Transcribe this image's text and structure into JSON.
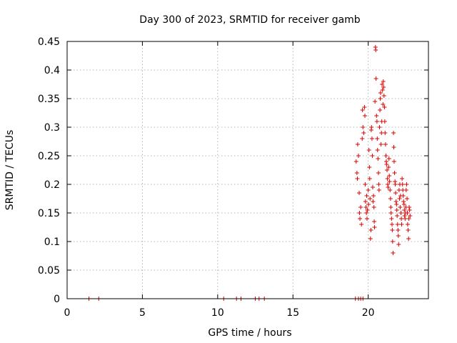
{
  "chart_data": {
    "type": "scatter",
    "title": "Day 300 of 2023, SRMTID for receiver gamb",
    "xlabel": "GPS time / hours",
    "ylabel": "SRMTID / TECUs",
    "xlim": [
      0,
      24
    ],
    "ylim": [
      0,
      0.45
    ],
    "xticks": [
      0,
      5,
      10,
      15,
      20
    ],
    "yticks": [
      0,
      0.05,
      0.1,
      0.15,
      0.2,
      0.25,
      0.3,
      0.35,
      0.4,
      0.45
    ],
    "xtick_labels": [
      "0",
      "5",
      "10",
      "15",
      "20"
    ],
    "ytick_labels": [
      "0",
      "0.05",
      "0.1",
      "0.15",
      "0.2",
      "0.25",
      "0.3",
      "0.35",
      "0.4",
      "0.45"
    ],
    "grid": true,
    "marker": "+",
    "color": "#dd0000",
    "series": [
      {
        "name": "SRMTID",
        "points": [
          [
            1.45,
            0
          ],
          [
            2.1,
            0
          ],
          [
            10.4,
            0
          ],
          [
            11.25,
            0
          ],
          [
            11.55,
            0
          ],
          [
            12.5,
            0
          ],
          [
            12.75,
            0
          ],
          [
            13.1,
            0
          ],
          [
            19.15,
            0
          ],
          [
            19.35,
            0
          ],
          [
            19.5,
            0
          ],
          [
            19.65,
            0
          ],
          [
            19.2,
            0.24
          ],
          [
            19.25,
            0.22
          ],
          [
            19.3,
            0.27
          ],
          [
            19.28,
            0.21
          ],
          [
            19.35,
            0.25
          ],
          [
            19.4,
            0.185
          ],
          [
            19.42,
            0.15
          ],
          [
            19.45,
            0.14
          ],
          [
            19.5,
            0.16
          ],
          [
            19.55,
            0.13
          ],
          [
            19.6,
            0.28
          ],
          [
            19.62,
            0.33
          ],
          [
            19.65,
            0.3
          ],
          [
            19.7,
            0.29
          ],
          [
            19.75,
            0.335
          ],
          [
            19.78,
            0.32
          ],
          [
            19.8,
            0.2
          ],
          [
            19.82,
            0.17
          ],
          [
            19.85,
            0.16
          ],
          [
            19.88,
            0.15
          ],
          [
            19.9,
            0.18
          ],
          [
            19.92,
            0.14
          ],
          [
            19.95,
            0.155
          ],
          [
            20.0,
            0.19
          ],
          [
            20.02,
            0.165
          ],
          [
            20.05,
            0.26
          ],
          [
            20.08,
            0.23
          ],
          [
            20.1,
            0.21
          ],
          [
            20.12,
            0.175
          ],
          [
            20.15,
            0.105
          ],
          [
            20.18,
            0.12
          ],
          [
            20.2,
            0.295
          ],
          [
            20.22,
            0.3
          ],
          [
            20.25,
            0.28
          ],
          [
            20.28,
            0.25
          ],
          [
            20.3,
            0.195
          ],
          [
            20.32,
            0.17
          ],
          [
            20.35,
            0.18
          ],
          [
            20.38,
            0.16
          ],
          [
            20.4,
            0.135
          ],
          [
            20.42,
            0.125
          ],
          [
            20.45,
            0.345
          ],
          [
            20.48,
            0.44
          ],
          [
            20.5,
            0.435
          ],
          [
            20.52,
            0.385
          ],
          [
            20.55,
            0.32
          ],
          [
            20.58,
            0.31
          ],
          [
            20.6,
            0.28
          ],
          [
            20.62,
            0.26
          ],
          [
            20.65,
            0.245
          ],
          [
            20.68,
            0.22
          ],
          [
            20.7,
            0.2
          ],
          [
            20.72,
            0.19
          ],
          [
            20.75,
            0.3
          ],
          [
            20.78,
            0.33
          ],
          [
            20.8,
            0.35
          ],
          [
            20.82,
            0.36
          ],
          [
            20.85,
            0.27
          ],
          [
            20.88,
            0.29
          ],
          [
            20.9,
            0.31
          ],
          [
            20.92,
            0.375
          ],
          [
            20.95,
            0.365
          ],
          [
            20.98,
            0.34
          ],
          [
            21.0,
            0.38
          ],
          [
            21.02,
            0.37
          ],
          [
            21.05,
            0.355
          ],
          [
            21.08,
            0.335
          ],
          [
            21.1,
            0.31
          ],
          [
            21.12,
            0.29
          ],
          [
            21.15,
            0.27
          ],
          [
            21.18,
            0.25
          ],
          [
            21.2,
            0.24
          ],
          [
            21.22,
            0.235
          ],
          [
            21.25,
            0.225
          ],
          [
            21.28,
            0.21
          ],
          [
            21.3,
            0.2
          ],
          [
            21.32,
            0.195
          ],
          [
            21.35,
            0.23
          ],
          [
            21.38,
            0.245
          ],
          [
            21.4,
            0.215
          ],
          [
            21.42,
            0.205
          ],
          [
            21.45,
            0.19
          ],
          [
            21.48,
            0.175
          ],
          [
            21.5,
            0.16
          ],
          [
            21.52,
            0.15
          ],
          [
            21.55,
            0.14
          ],
          [
            21.58,
            0.13
          ],
          [
            21.6,
            0.12
          ],
          [
            21.62,
            0.1
          ],
          [
            21.65,
            0.08
          ],
          [
            21.68,
            0.29
          ],
          [
            21.7,
            0.265
          ],
          [
            21.72,
            0.24
          ],
          [
            21.75,
            0.22
          ],
          [
            21.78,
            0.205
          ],
          [
            21.8,
            0.2
          ],
          [
            21.82,
            0.185
          ],
          [
            21.85,
            0.17
          ],
          [
            21.88,
            0.165
          ],
          [
            21.9,
            0.155
          ],
          [
            21.92,
            0.145
          ],
          [
            21.95,
            0.13
          ],
          [
            21.98,
            0.12
          ],
          [
            22.0,
            0.11
          ],
          [
            22.02,
            0.095
          ],
          [
            22.05,
            0.19
          ],
          [
            22.08,
            0.175
          ],
          [
            22.1,
            0.2
          ],
          [
            22.12,
            0.16
          ],
          [
            22.15,
            0.18
          ],
          [
            22.18,
            0.15
          ],
          [
            22.2,
            0.14
          ],
          [
            22.22,
            0.13
          ],
          [
            22.25,
            0.21
          ],
          [
            22.28,
            0.2
          ],
          [
            22.3,
            0.19
          ],
          [
            22.32,
            0.18
          ],
          [
            22.35,
            0.17
          ],
          [
            22.38,
            0.165
          ],
          [
            22.4,
            0.155
          ],
          [
            22.42,
            0.145
          ],
          [
            22.45,
            0.14
          ],
          [
            22.48,
            0.15
          ],
          [
            22.5,
            0.16
          ],
          [
            22.52,
            0.19
          ],
          [
            22.55,
            0.2
          ],
          [
            22.58,
            0.175
          ],
          [
            22.6,
            0.15
          ],
          [
            22.62,
            0.13
          ],
          [
            22.65,
            0.12
          ],
          [
            22.68,
            0.105
          ],
          [
            22.7,
            0.14
          ],
          [
            22.72,
            0.16
          ],
          [
            22.75,
            0.155
          ],
          [
            22.78,
            0.145
          ]
        ]
      }
    ]
  }
}
